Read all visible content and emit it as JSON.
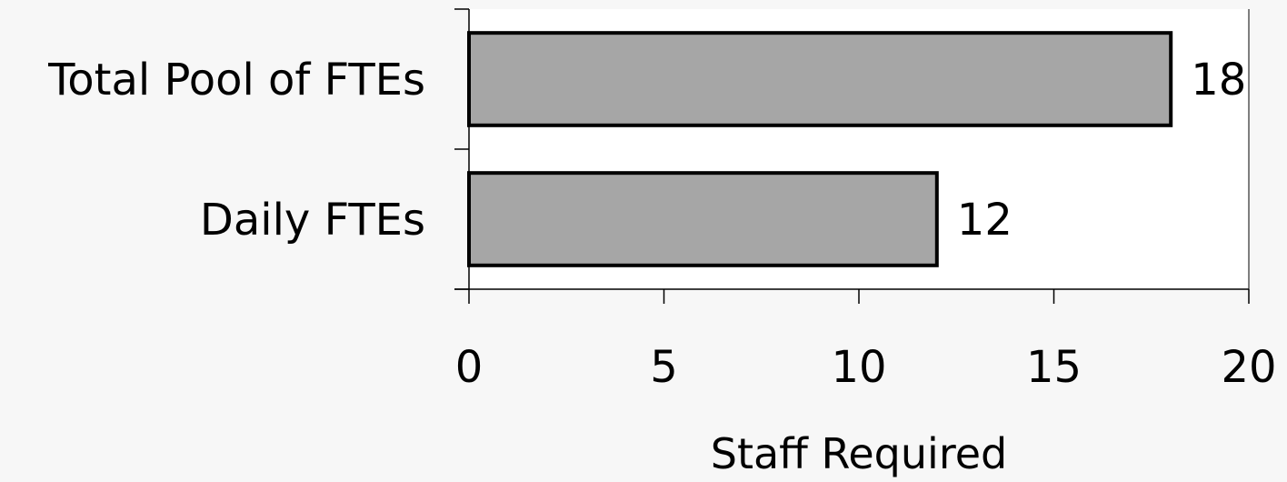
{
  "chart_data": {
    "type": "bar",
    "orientation": "horizontal",
    "categories": [
      "Total Pool of FTEs",
      "Daily FTEs"
    ],
    "values": [
      18,
      12
    ],
    "title": "",
    "xlabel": "Staff Required",
    "ylabel": "",
    "xlim": [
      0,
      20
    ],
    "xticks": [
      0,
      5,
      10,
      15,
      20
    ],
    "data_labels": true,
    "grid": false,
    "legend": "none",
    "colors": {
      "bar_fill": "#a6a6a6",
      "bar_stroke": "#000000",
      "plot_background": "#ffffff",
      "page_background": "#f7f7f7"
    }
  }
}
